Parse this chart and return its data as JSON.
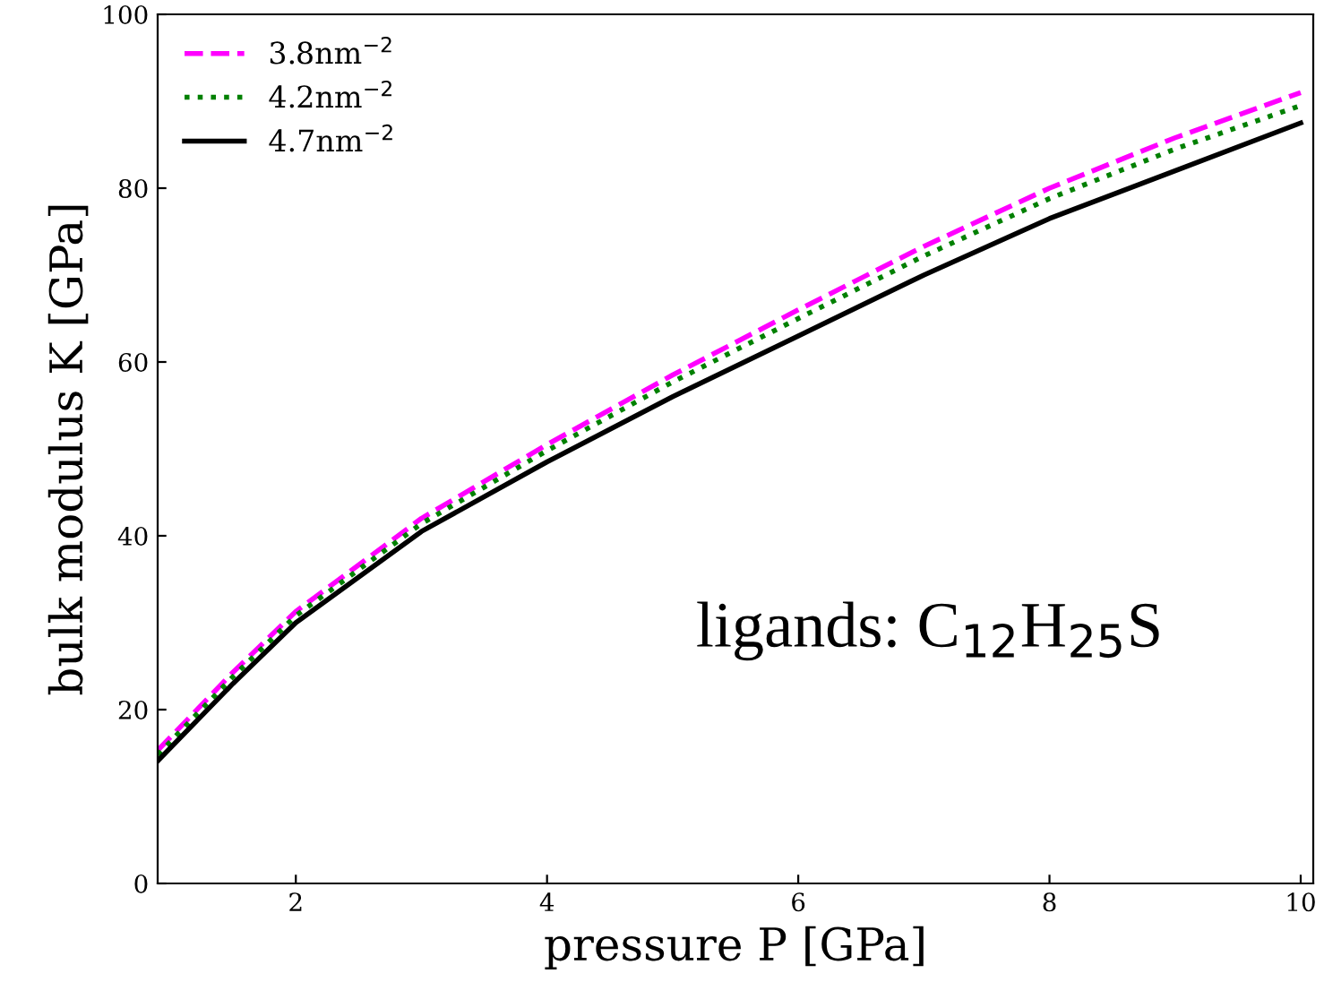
{
  "chart_data": {
    "type": "line",
    "xlabel": "pressure P [GPa]",
    "ylabel": "bulk modulus K [GPa]",
    "x": [
      0.9,
      1.5,
      2,
      3,
      4,
      5,
      6,
      7,
      8,
      9,
      10
    ],
    "series": [
      {
        "name": "3.8nm$^{−2}$",
        "color": "#ff00ff",
        "line_style": "dashed",
        "values": [
          15.3,
          24.3,
          31.3,
          42,
          50.5,
          58.5,
          66,
          73.3,
          80,
          85.8,
          91
        ]
      },
      {
        "name": "4.2nm$^{−2}$",
        "color": "#008000",
        "line_style": "dotted",
        "values": [
          14.8,
          23.8,
          30.8,
          41.4,
          49.8,
          57.7,
          65,
          72.2,
          78.8,
          84.5,
          89.5
        ]
      },
      {
        "name": "4.7nm$^{−2}$",
        "color": "#000000",
        "line_style": "solid",
        "values": [
          14.1,
          23,
          30,
          40.5,
          48.5,
          56,
          63,
          70,
          76.5,
          82,
          87.5
        ]
      }
    ],
    "xlim": [
      0.9,
      10.1
    ],
    "ylim": [
      0,
      100
    ],
    "xticks": [
      2,
      4,
      6,
      8,
      10
    ],
    "yticks": [
      0,
      20,
      40,
      60,
      80,
      100
    ],
    "grid": false,
    "legend": "top left",
    "annotations": [
      "ligands: C$_{12}$H$_{25}$S"
    ]
  }
}
